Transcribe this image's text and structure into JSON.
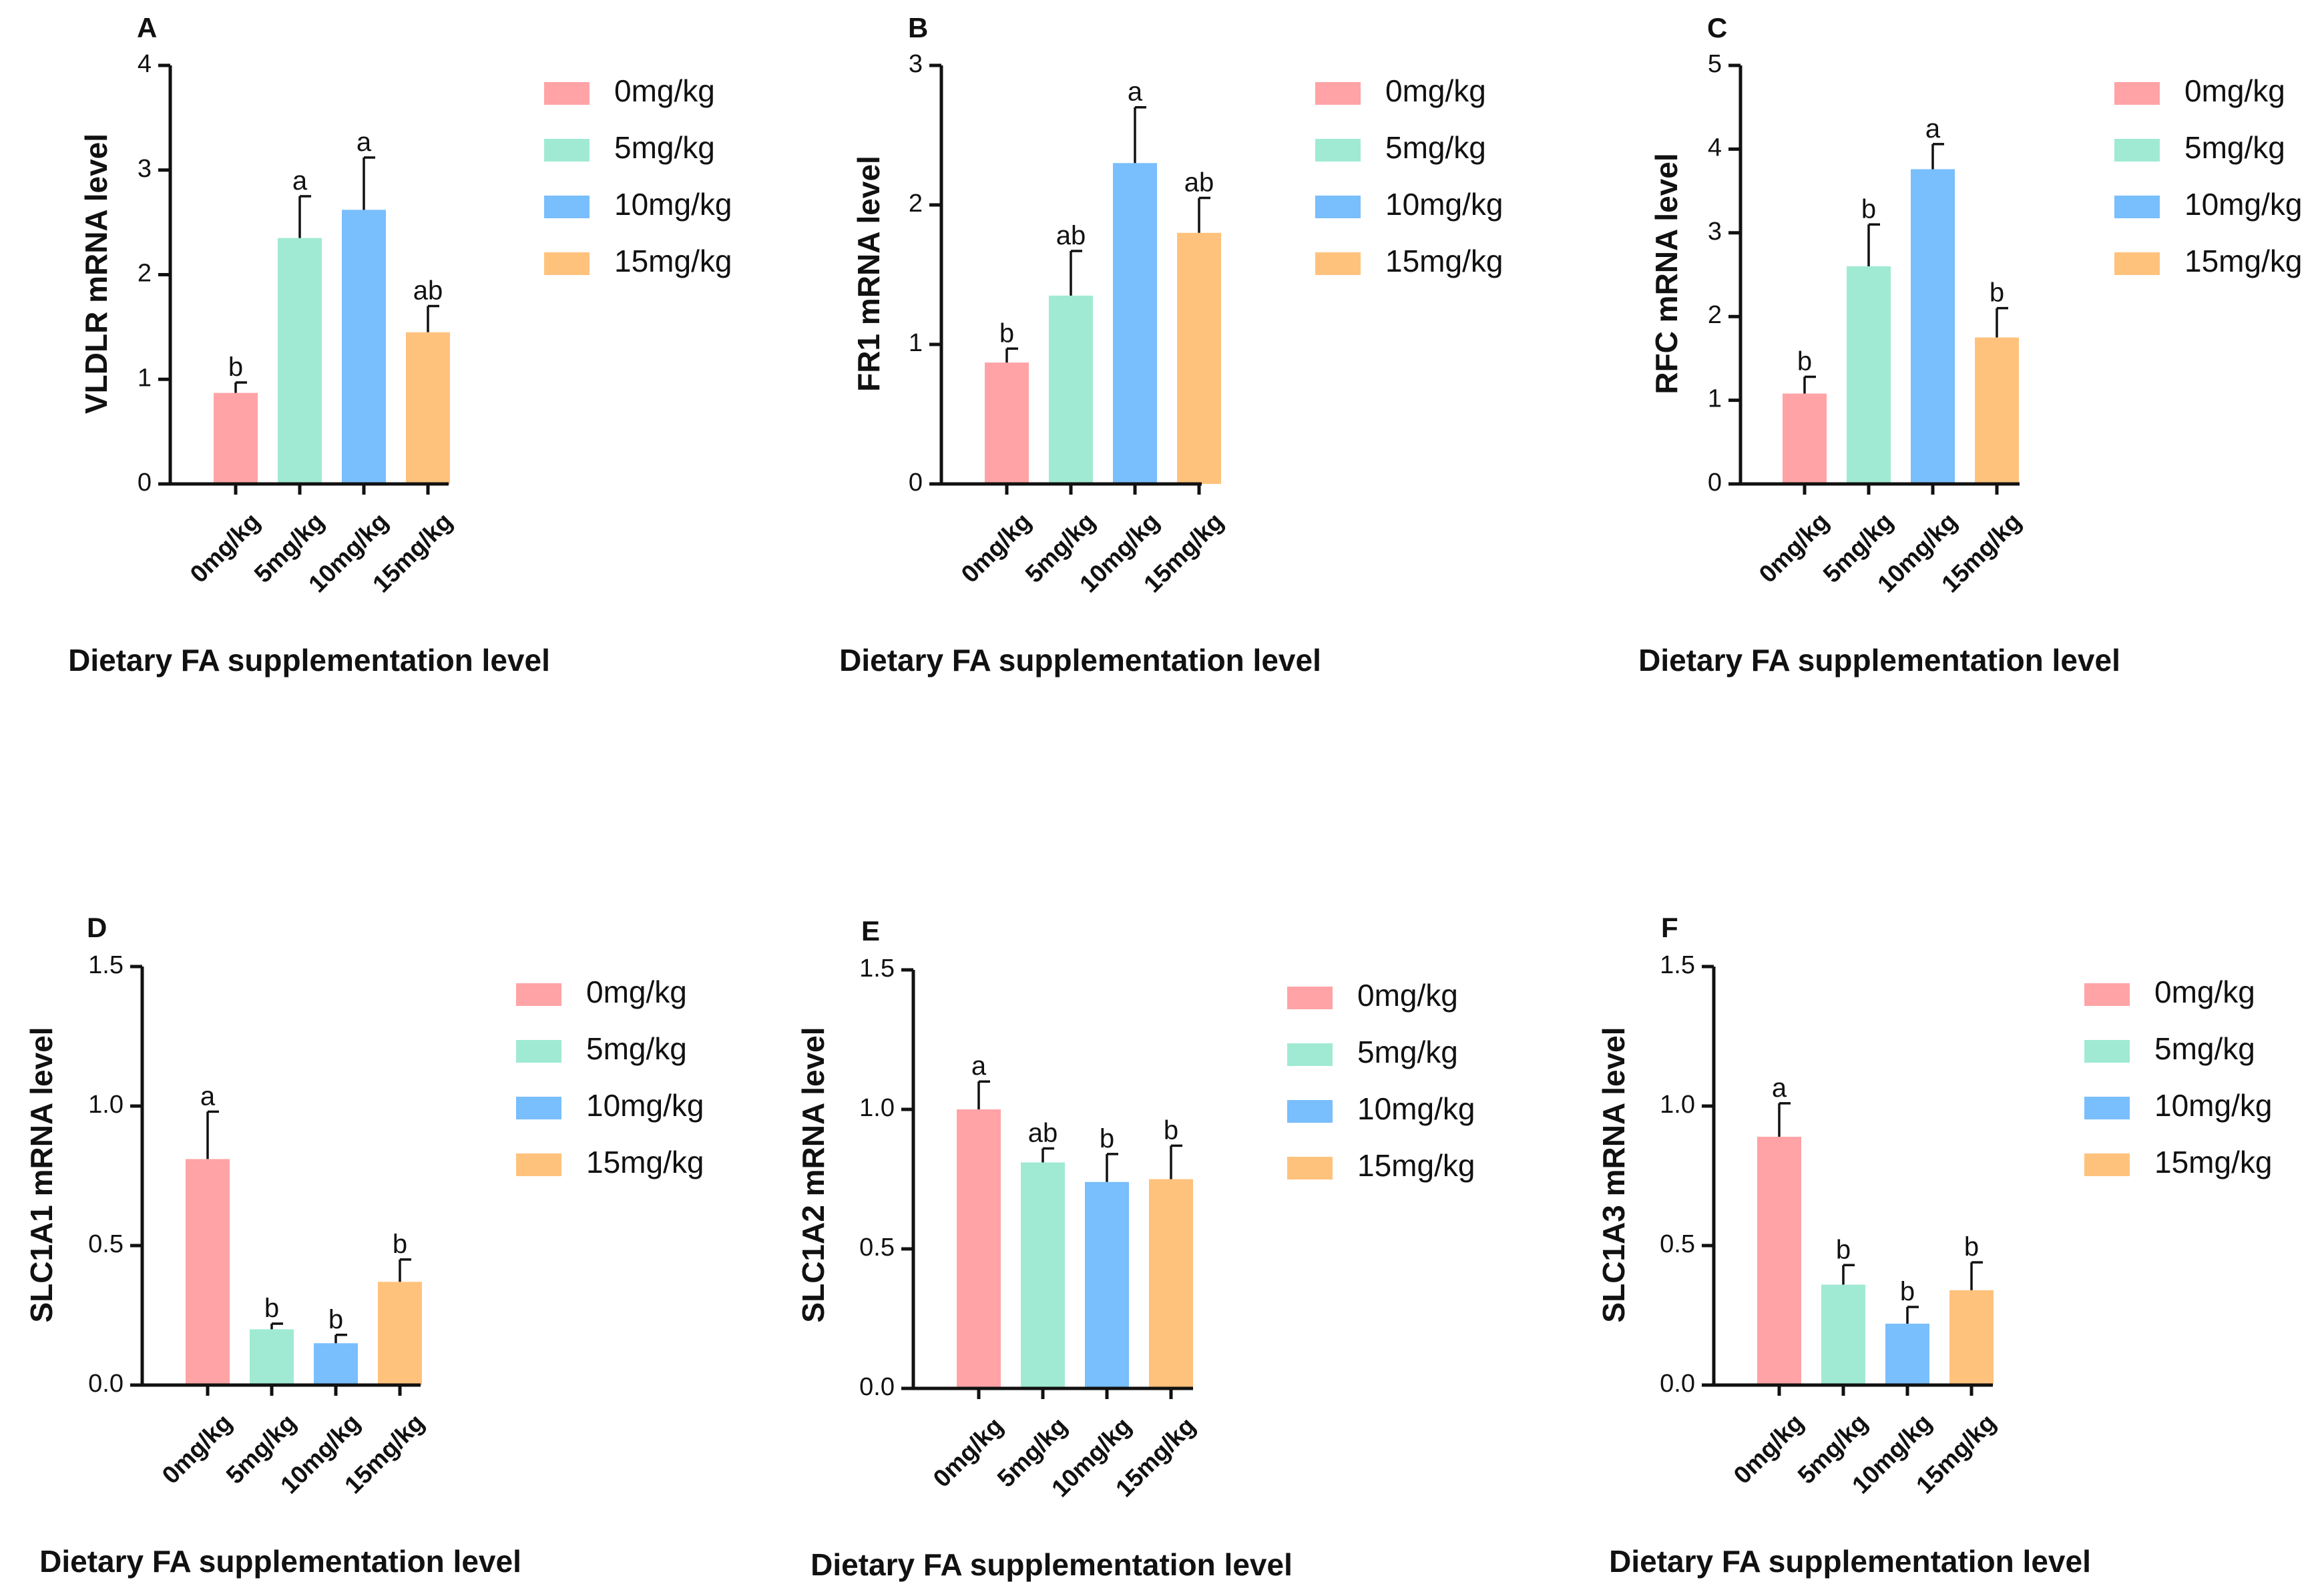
{
  "figure": {
    "xlabel": "Dietary FA supplementation level"
  },
  "colors": {
    "0mg/kg": "#FFA3A6",
    "5mg/kg": "#A0EAD4",
    "10mg/kg": "#79BEFD",
    "15mg/kg": "#FFC27D"
  },
  "chart_data": [
    {
      "type": "bar",
      "panel": "A",
      "title": "",
      "ylabel": "VLDLR mRNA level",
      "xlabel": "Dietary FA supplementation level",
      "categories": [
        "0mg/kg",
        "5mg/kg",
        "10mg/kg",
        "15mg/kg"
      ],
      "values": [
        0.87,
        2.35,
        2.62,
        1.45
      ],
      "errors": [
        0.1,
        0.4,
        0.5,
        0.25
      ],
      "significance": [
        "b",
        "a",
        "a",
        "ab"
      ],
      "ylim": [
        0,
        4
      ],
      "yticks": [
        "0",
        "1",
        "2",
        "3",
        "4"
      ],
      "legend": [
        "0mg/kg",
        "5mg/kg",
        "10mg/kg",
        "15mg/kg"
      ],
      "legend_position": "right"
    },
    {
      "type": "bar",
      "panel": "B",
      "title": "",
      "ylabel": "FR1 mRNA level",
      "xlabel": "Dietary FA supplementation level",
      "categories": [
        "0mg/kg",
        "5mg/kg",
        "10mg/kg",
        "15mg/kg"
      ],
      "values": [
        0.87,
        1.35,
        2.3,
        1.8
      ],
      "errors": [
        0.1,
        0.32,
        0.4,
        0.25
      ],
      "significance": [
        "b",
        "ab",
        "a",
        "ab"
      ],
      "ylim": [
        0,
        3
      ],
      "yticks": [
        "0",
        "1",
        "2",
        "3"
      ],
      "legend": [
        "0mg/kg",
        "5mg/kg",
        "10mg/kg",
        "15mg/kg"
      ],
      "legend_position": "right"
    },
    {
      "type": "bar",
      "panel": "C",
      "title": "",
      "ylabel": "RFC mRNA level",
      "xlabel": "Dietary FA supplementation level",
      "categories": [
        "0mg/kg",
        "5mg/kg",
        "10mg/kg",
        "15mg/kg"
      ],
      "values": [
        1.08,
        2.6,
        3.76,
        1.75
      ],
      "errors": [
        0.2,
        0.5,
        0.3,
        0.35
      ],
      "significance": [
        "b",
        "b",
        "a",
        "b"
      ],
      "ylim": [
        0,
        5
      ],
      "yticks": [
        "0",
        "1",
        "2",
        "3",
        "4",
        "5"
      ],
      "legend": [
        "0mg/kg",
        "5mg/kg",
        "10mg/kg",
        "15mg/kg"
      ],
      "legend_position": "right"
    },
    {
      "type": "bar",
      "panel": "D",
      "title": "",
      "ylabel": "SLC1A1 mRNA level",
      "xlabel": "Dietary FA supplementation level",
      "categories": [
        "0mg/kg",
        "5mg/kg",
        "10mg/kg",
        "15mg/kg"
      ],
      "values": [
        0.81,
        0.2,
        0.15,
        0.37
      ],
      "errors": [
        0.17,
        0.02,
        0.03,
        0.08
      ],
      "significance": [
        "a",
        "b",
        "b",
        "b"
      ],
      "ylim": [
        0,
        1.5
      ],
      "yticks": [
        "0.0",
        "0.5",
        "1.0",
        "1.5"
      ],
      "legend": [
        "0mg/kg",
        "5mg/kg",
        "10mg/kg",
        "15mg/kg"
      ],
      "legend_position": "right"
    },
    {
      "type": "bar",
      "panel": "E",
      "title": "",
      "ylabel": "SLC1A2 mRNA level",
      "xlabel": "Dietary FA supplementation level",
      "categories": [
        "0mg/kg",
        "5mg/kg",
        "10mg/kg",
        "15mg/kg"
      ],
      "values": [
        1.0,
        0.81,
        0.74,
        0.75
      ],
      "errors": [
        0.1,
        0.05,
        0.1,
        0.12
      ],
      "significance": [
        "a",
        "ab",
        "b",
        "b"
      ],
      "ylim": [
        0,
        1.5
      ],
      "yticks": [
        "0.0",
        "0.5",
        "1.0",
        "1.5"
      ],
      "legend": [
        "0mg/kg",
        "5mg/kg",
        "10mg/kg",
        "15mg/kg"
      ],
      "legend_position": "right"
    },
    {
      "type": "bar",
      "panel": "F",
      "title": "",
      "ylabel": "SLC1A3 mRNA level",
      "xlabel": "Dietary FA supplementation level",
      "categories": [
        "0mg/kg",
        "5mg/kg",
        "10mg/kg",
        "15mg/kg"
      ],
      "values": [
        0.89,
        0.36,
        0.22,
        0.34
      ],
      "errors": [
        0.12,
        0.07,
        0.06,
        0.1
      ],
      "significance": [
        "a",
        "b",
        "b",
        "b"
      ],
      "ylim": [
        0,
        1.5
      ],
      "yticks": [
        "0.0",
        "0.5",
        "1.0",
        "1.5"
      ],
      "legend": [
        "0mg/kg",
        "5mg/kg",
        "10mg/kg",
        "15mg/kg"
      ],
      "legend_position": "right"
    }
  ]
}
